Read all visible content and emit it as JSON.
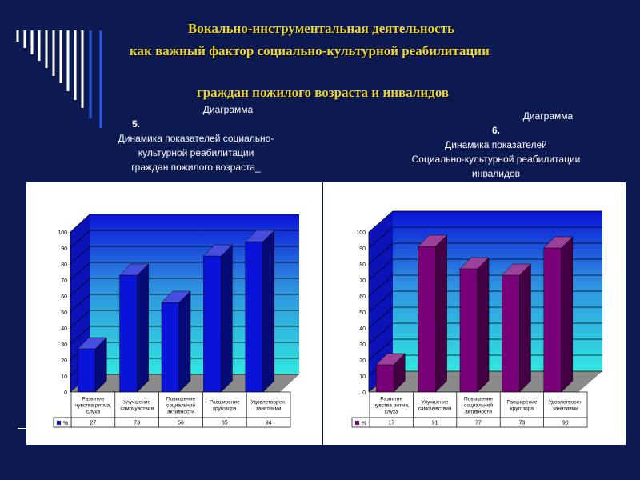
{
  "title": {
    "line1": "Вокально-инструментальная деятельность",
    "line2": "как важный фактор социально-культурной реабилитации",
    "line3": "граждан пожилого возраста и инвалидов"
  },
  "captions": {
    "left": {
      "l1": "Диаграмма",
      "l2": "5.",
      "l3": "Динамика показателей социально-",
      "l4": "культурной реабилитации",
      "l5": "граждан пожилого возраста_"
    },
    "right": {
      "l1": "Диаграмма",
      "l2": "6.",
      "l3": "Динамика показателей",
      "l4": "Социально-культурной реабилитации",
      "l5": "инвалидов"
    }
  },
  "colors": {
    "accent": "#e8d23a",
    "background": "#0d1a52",
    "bar_left": "#0a14d8",
    "bar_right": "#7a007a"
  },
  "chart_data": [
    {
      "type": "bar",
      "categories": [
        [
          "Развитие",
          "чувства ритма,",
          "слуха"
        ],
        [
          "Улучшение",
          "самочувствия"
        ],
        [
          "Повышение",
          "социальной",
          "активности"
        ],
        [
          "Расширение",
          "кругозора"
        ],
        [
          "Удовлетворен.",
          "занятиями"
        ]
      ],
      "series": [
        {
          "name": "%",
          "values": [
            27,
            73,
            56,
            85,
            94
          ]
        }
      ],
      "ylim": [
        0,
        100
      ],
      "yticks": [
        0,
        10,
        20,
        30,
        40,
        50,
        60,
        70,
        80,
        90,
        100
      ],
      "grid": true,
      "legend": "table"
    },
    {
      "type": "bar",
      "categories": [
        [
          "Развитие",
          "чувства ритма,",
          "слуха"
        ],
        [
          "Улучшение",
          "самочувствия"
        ],
        [
          "Повышение",
          "социальной",
          "активности"
        ],
        [
          "Расширение",
          "кругозора"
        ],
        [
          "Удовлетворен",
          "занятиями"
        ]
      ],
      "series": [
        {
          "name": "%",
          "values": [
            17,
            91,
            77,
            73,
            90
          ]
        }
      ],
      "ylim": [
        0,
        100
      ],
      "yticks": [
        0,
        10,
        20,
        30,
        40,
        50,
        60,
        70,
        80,
        90,
        100
      ],
      "grid": true,
      "legend": "table"
    }
  ]
}
